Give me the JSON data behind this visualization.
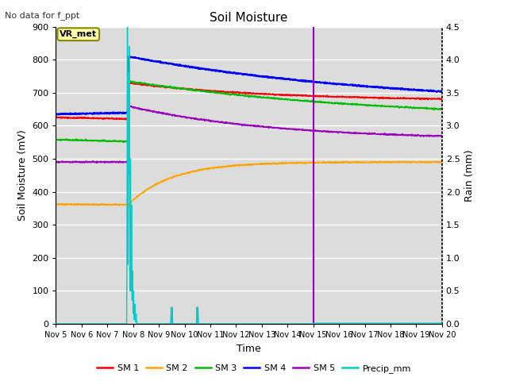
{
  "title": "Soil Moisture",
  "subtitle": "No data for f_ppt",
  "xlabel": "Time",
  "ylabel_left": "Soil Moisture (mV)",
  "ylabel_right": "Rain (mm)",
  "annotation": "VR_met",
  "ylim_left": [
    0,
    900
  ],
  "ylim_right": [
    0.0,
    4.5
  ],
  "plot_bg_color": "#dcdcdc",
  "sm1_color": "#ff0000",
  "sm2_color": "#ffa500",
  "sm3_color": "#00bb00",
  "sm4_color": "#0000ff",
  "sm5_color": "#9900bb",
  "precip_color": "#00cccc",
  "vline_color": "#9900bb",
  "legend_labels": [
    "SM 1",
    "SM 2",
    "SM 3",
    "SM 4",
    "SM 5",
    "Precip_mm"
  ],
  "xtick_labels": [
    "Nov 5",
    "Nov 6",
    "Nov 7",
    "Nov 8",
    "Nov 9",
    "Nov 10",
    "Nov 11",
    "Nov 12",
    "Nov 13",
    "Nov 14",
    "Nov 15",
    "Nov 16",
    "Nov 17",
    "Nov 18",
    "Nov 19",
    "Nov 20"
  ]
}
